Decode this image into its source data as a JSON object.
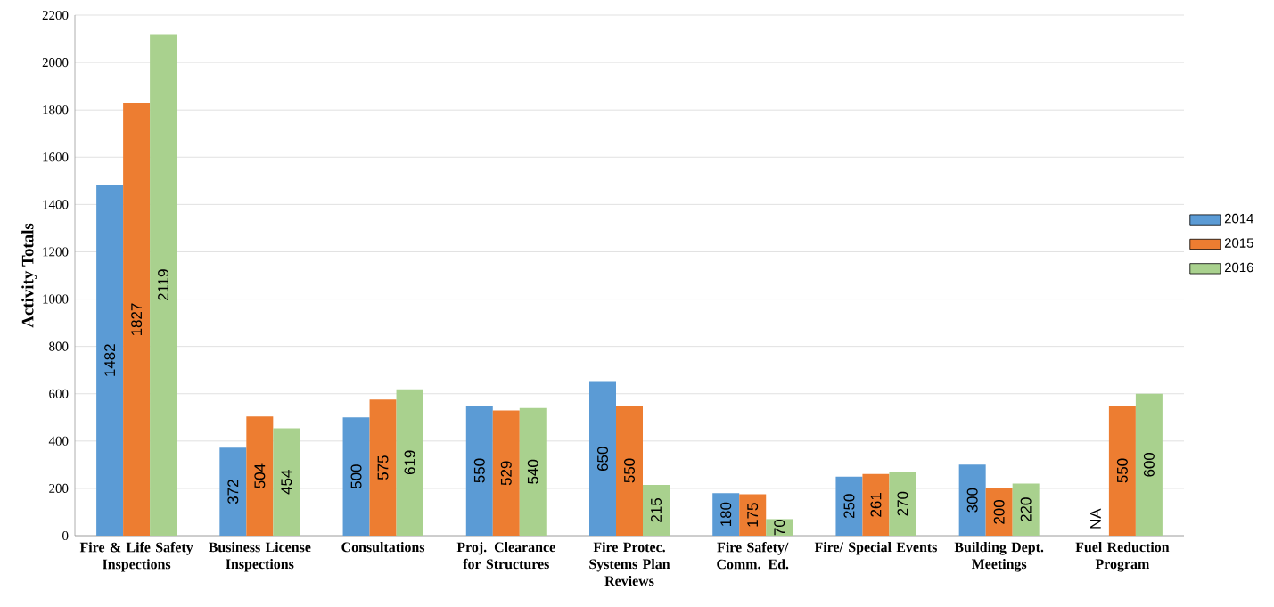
{
  "chart_data": {
    "type": "bar",
    "ylabel": "Activity Totals",
    "categories": [
      "Fire & Life Safety Inspections",
      "Business License Inspections",
      "Consultations",
      "Proj. Clearance for Structures",
      "Fire Protec. Systems Plan Reviews",
      "Fire Safety/ Comm. Ed.",
      "Fire/ Special Events",
      "Building Dept. Meetings",
      "Fuel Reduction Program"
    ],
    "series": [
      {
        "name": "2014",
        "color": "#5b9bd5",
        "values": [
          1482,
          372,
          500,
          550,
          650,
          180,
          250,
          300,
          null
        ],
        "value_labels": [
          "1482",
          "372",
          "500",
          "550",
          "650",
          "180",
          "250",
          "300",
          "NA"
        ]
      },
      {
        "name": "2015",
        "color": "#ed7d31",
        "values": [
          1827,
          504,
          575,
          529,
          550,
          175,
          261,
          200,
          550
        ],
        "value_labels": [
          "1827",
          "504",
          "575",
          "529",
          "550",
          "175",
          "261",
          "200",
          "550"
        ]
      },
      {
        "name": "2016",
        "color": "#a9d18e",
        "values": [
          2119,
          454,
          619,
          540,
          215,
          70,
          270,
          220,
          600
        ],
        "value_labels": [
          "2119",
          "454",
          "619",
          "540",
          "215",
          "70",
          "270",
          "220",
          "600"
        ]
      }
    ],
    "ylim": [
      0,
      2200
    ],
    "yticks": [
      0,
      200,
      400,
      600,
      800,
      1000,
      1200,
      1400,
      1600,
      1800,
      2000,
      2200
    ],
    "grid": "y",
    "legend": "right"
  }
}
